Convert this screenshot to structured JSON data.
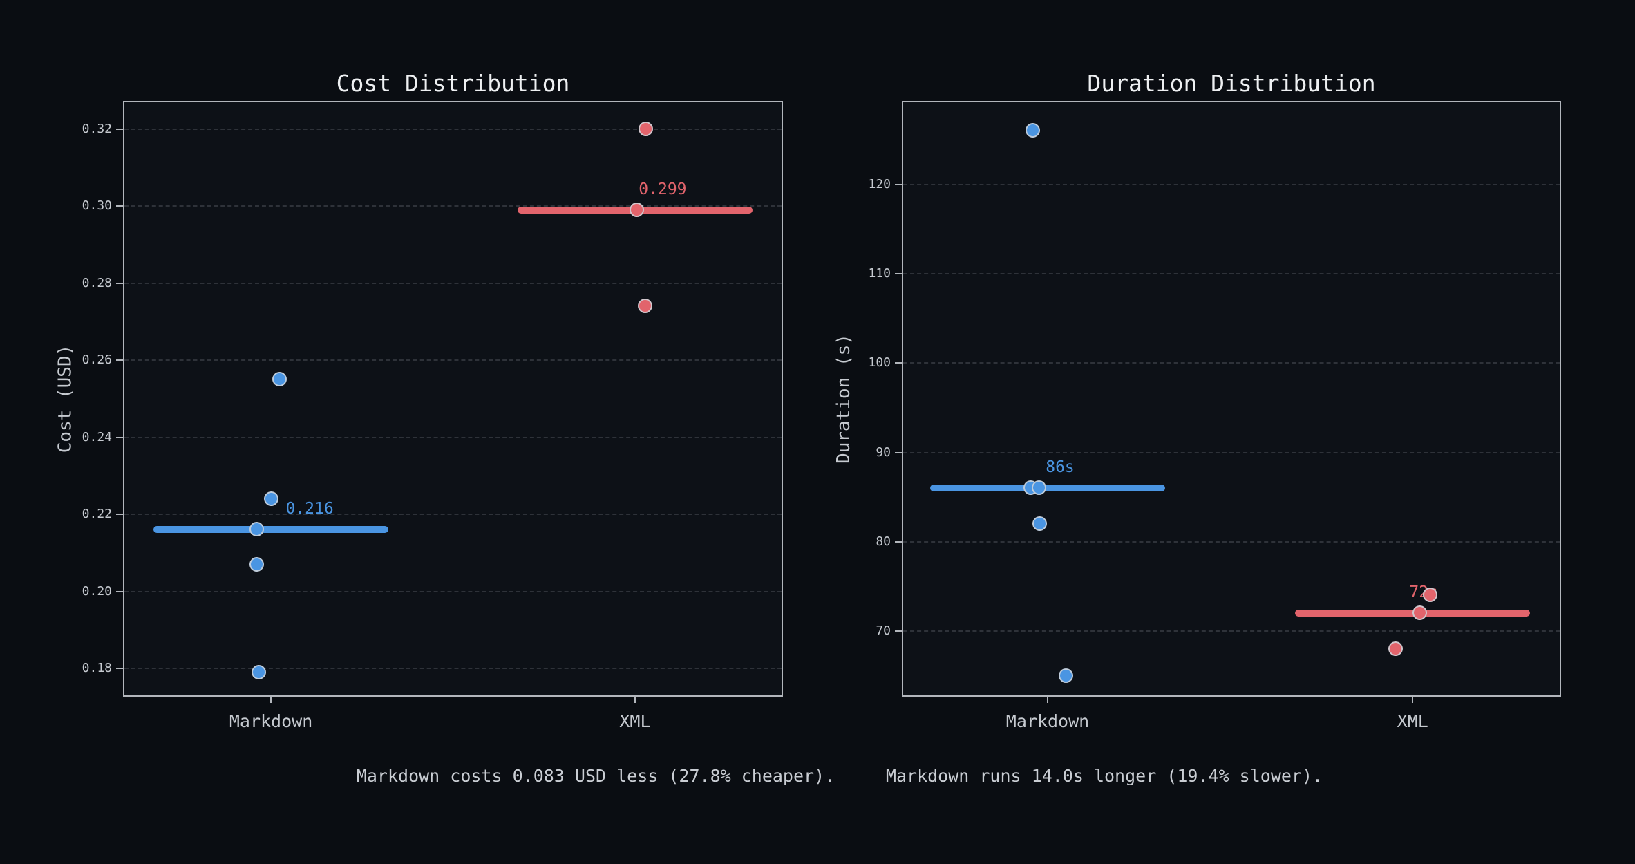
{
  "figure": {
    "background": "#0a0d12",
    "plot_background": "#0d1117",
    "spine_color": "#b2b6bc",
    "grid_color": "#3a3e45",
    "tick_color": "#c6cad0",
    "title_color": "#eef0f2",
    "markdown_color": "#4a95e2",
    "xml_color": "#e2646c"
  },
  "summary": {
    "cost_text": "Markdown costs 0.083 USD less (27.8% cheaper).",
    "duration_text": "Markdown runs 14.0s longer (19.4% slower)."
  },
  "chart_data": [
    {
      "type": "scatter",
      "title": "Cost Distribution",
      "xlabel": "",
      "ylabel": "Cost (USD)",
      "categories": [
        "Markdown",
        "XML"
      ],
      "cat_x": [
        0.223,
        0.777
      ],
      "ylim": [
        0.173,
        0.327
      ],
      "grid": true,
      "yticks": [
        {
          "v": 0.18,
          "label": "0.18"
        },
        {
          "v": 0.2,
          "label": "0.20"
        },
        {
          "v": 0.22,
          "label": "0.22"
        },
        {
          "v": 0.24,
          "label": "0.24"
        },
        {
          "v": 0.26,
          "label": "0.26"
        },
        {
          "v": 0.28,
          "label": "0.28"
        },
        {
          "v": 0.3,
          "label": "0.30"
        },
        {
          "v": 0.32,
          "label": "0.32"
        }
      ],
      "series": [
        {
          "name": "Markdown",
          "color": "#4a95e2",
          "points": [
            {
              "v": 0.255,
              "dx": 13
            },
            {
              "v": 0.224,
              "dx": 1
            },
            {
              "v": 0.216,
              "dx": -20
            },
            {
              "v": 0.207,
              "dx": -20
            },
            {
              "v": 0.179,
              "dx": -17
            }
          ],
          "median": 0.216,
          "median_label": "0.216",
          "label_dx": 56
        },
        {
          "name": "XML",
          "color": "#e2646c",
          "points": [
            {
              "v": 0.32,
              "dx": 16
            },
            {
              "v": 0.299,
              "dx": 3
            },
            {
              "v": 0.274,
              "dx": 15
            }
          ],
          "median": 0.299,
          "median_label": "0.299",
          "label_dx": 40
        }
      ]
    },
    {
      "type": "scatter",
      "title": "Duration Distribution",
      "xlabel": "",
      "ylabel": "Duration (s)",
      "categories": [
        "Markdown",
        "XML"
      ],
      "cat_x": [
        0.22,
        0.776
      ],
      "ylim": [
        62.8,
        129.2
      ],
      "grid": true,
      "yticks": [
        {
          "v": 70,
          "label": "70"
        },
        {
          "v": 80,
          "label": "80"
        },
        {
          "v": 90,
          "label": "90"
        },
        {
          "v": 100,
          "label": "100"
        },
        {
          "v": 110,
          "label": "110"
        },
        {
          "v": 120,
          "label": "120"
        }
      ],
      "series": [
        {
          "name": "Markdown",
          "color": "#4a95e2",
          "points": [
            {
              "v": 126,
              "dx": -21
            },
            {
              "v": 86,
              "dx": -24
            },
            {
              "v": 86,
              "dx": -12
            },
            {
              "v": 82,
              "dx": -11
            },
            {
              "v": 65,
              "dx": 27
            }
          ],
          "median": 86,
          "median_label": "86s",
          "label_dx": 18
        },
        {
          "name": "XML",
          "color": "#e2646c",
          "points": [
            {
              "v": 74,
              "dx": 26
            },
            {
              "v": 72,
              "dx": 11
            },
            {
              "v": 68,
              "dx": -24
            }
          ],
          "median": 72,
          "median_label": "72s",
          "label_dx": 16
        }
      ]
    }
  ]
}
